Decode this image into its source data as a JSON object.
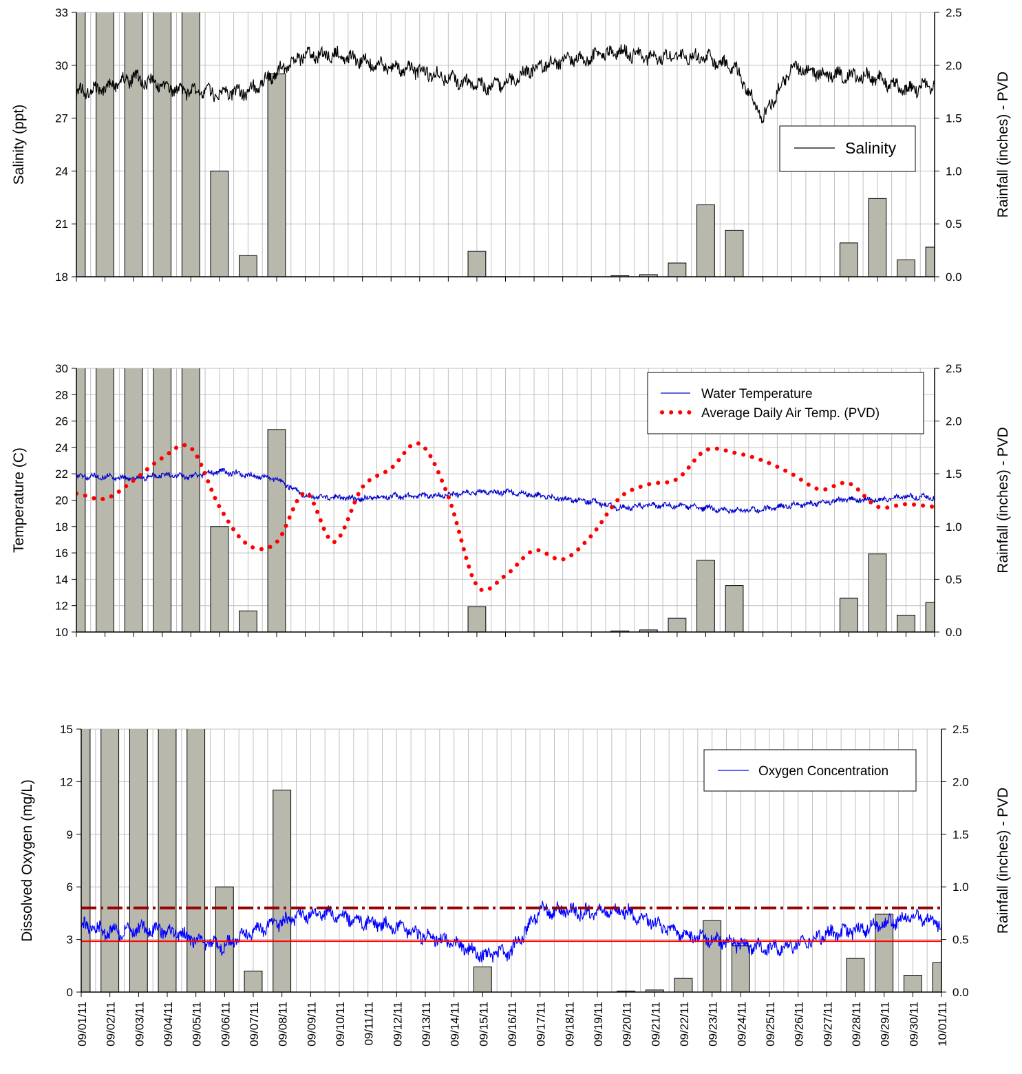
{
  "colors": {
    "bar_fill": "#b9b8ac",
    "grid": "#c0c0c0",
    "salinity": "#000000",
    "water_temp": "#0000cc",
    "air_temp": "#ff0000",
    "oxygen": "#0000ff",
    "threshold_upper": "#990000",
    "threshold_lower": "#ff0000"
  },
  "x_dates": [
    "09/01/11",
    "09/02/11",
    "09/03/11",
    "09/04/11",
    "09/05/11",
    "09/06/11",
    "09/07/11",
    "09/08/11",
    "09/09/11",
    "09/10/11",
    "09/11/11",
    "09/12/11",
    "09/13/11",
    "09/14/11",
    "09/15/11",
    "09/16/11",
    "09/17/11",
    "09/18/11",
    "09/19/11",
    "09/20/11",
    "09/21/11",
    "09/22/11",
    "09/23/11",
    "09/24/11",
    "09/25/11",
    "09/26/11",
    "09/27/11",
    "09/28/11",
    "09/29/11",
    "09/30/11",
    "10/01/11"
  ],
  "chart_data": [
    {
      "type": "line",
      "ylabel": "Salinity (ppt)",
      "y2label": "Rainfall (inches) - PVD",
      "ylim": [
        18,
        33
      ],
      "yticks": [
        18,
        21,
        24,
        27,
        30,
        33
      ],
      "y2lim": [
        0,
        2.5
      ],
      "y2ticks": [
        "0.0",
        "0.5",
        "1.0",
        "1.5",
        "2.0",
        "2.5"
      ],
      "legend_position": "upper-right",
      "rainfall": {
        "name": "Rainfall",
        "dates": [
          "09/01/11",
          "09/02/11",
          "09/03/11",
          "09/04/11",
          "09/05/11",
          "09/06/11",
          "09/07/11",
          "09/08/11",
          "09/15/11",
          "09/20/11",
          "09/21/11",
          "09/22/11",
          "09/23/11",
          "09/24/11",
          "09/28/11",
          "09/29/11",
          "09/30/11",
          "10/01/11"
        ],
        "values": [
          3.0,
          3.0,
          3.0,
          3.0,
          3.0,
          1.0,
          0.2,
          1.92,
          0.24,
          0.01,
          0.02,
          0.13,
          0.68,
          0.44,
          0.32,
          0.74,
          0.16,
          0.28
        ]
      },
      "series": [
        {
          "name": "Salinity",
          "x": [
            "09/01/11",
            "09/02/11",
            "09/03/11",
            "09/04/11",
            "09/05/11",
            "09/06/11",
            "09/07/11",
            "09/08/11",
            "09/09/11",
            "09/10/11",
            "09/11/11",
            "09/12/11",
            "09/13/11",
            "09/14/11",
            "09/15/11",
            "09/16/11",
            "09/17/11",
            "09/18/11",
            "09/19/11",
            "09/20/11",
            "09/21/11",
            "09/22/11",
            "09/23/11",
            "09/24/11",
            "09/25/11",
            "09/26/11",
            "09/27/11",
            "09/28/11",
            "09/29/11",
            "09/30/11",
            "10/01/11"
          ],
          "values": [
            28.5,
            28.7,
            29.3,
            28.8,
            28.5,
            28.4,
            28.5,
            29.6,
            30.6,
            30.6,
            30.2,
            29.9,
            29.7,
            29.3,
            28.8,
            28.9,
            29.9,
            30.3,
            30.4,
            30.8,
            30.4,
            30.5,
            30.4,
            29.9,
            27.0,
            29.9,
            29.5,
            29.4,
            29.3,
            28.6,
            28.9
          ]
        }
      ]
    },
    {
      "type": "line",
      "ylabel": "Temperature (C)",
      "y2label": "Rainfall (inches) - PVD",
      "ylim": [
        10,
        30
      ],
      "yticks": [
        10,
        12,
        14,
        16,
        18,
        20,
        22,
        24,
        26,
        28,
        30
      ],
      "y2lim": [
        0,
        2.5
      ],
      "y2ticks": [
        "0.0",
        "0.5",
        "1.0",
        "1.5",
        "2.0",
        "2.5"
      ],
      "legend_position": "upper-right",
      "rainfall": {
        "name": "Rainfall",
        "dates": [
          "09/01/11",
          "09/02/11",
          "09/03/11",
          "09/04/11",
          "09/05/11",
          "09/06/11",
          "09/07/11",
          "09/08/11",
          "09/15/11",
          "09/20/11",
          "09/21/11",
          "09/22/11",
          "09/23/11",
          "09/24/11",
          "09/28/11",
          "09/29/11",
          "09/30/11",
          "10/01/11"
        ],
        "values": [
          3.0,
          3.0,
          3.0,
          3.0,
          3.0,
          1.0,
          0.2,
          1.92,
          0.24,
          0.01,
          0.02,
          0.13,
          0.68,
          0.44,
          0.32,
          0.74,
          0.16,
          0.28
        ]
      },
      "series": [
        {
          "name": "Water Temperature",
          "x": [
            "09/01/11",
            "09/02/11",
            "09/03/11",
            "09/04/11",
            "09/05/11",
            "09/06/11",
            "09/07/11",
            "09/08/11",
            "09/09/11",
            "09/10/11",
            "09/11/11",
            "09/12/11",
            "09/13/11",
            "09/14/11",
            "09/15/11",
            "09/16/11",
            "09/17/11",
            "09/18/11",
            "09/19/11",
            "09/20/11",
            "09/21/11",
            "09/22/11",
            "09/23/11",
            "09/24/11",
            "09/25/11",
            "09/26/11",
            "09/27/11",
            "09/28/11",
            "09/29/11",
            "09/30/11",
            "10/01/11"
          ],
          "values": [
            21.8,
            21.8,
            21.6,
            21.9,
            21.8,
            22.2,
            21.9,
            21.6,
            20.3,
            20.2,
            20.1,
            20.3,
            20.3,
            20.4,
            20.6,
            20.6,
            20.4,
            20.1,
            19.9,
            19.4,
            19.6,
            19.6,
            19.4,
            19.2,
            19.3,
            19.6,
            19.8,
            20.1,
            20.0,
            20.3,
            20.2
          ]
        },
        {
          "name": "Average Daily Air Temp. (PVD)",
          "x": [
            "09/01/11",
            "09/02/11",
            "09/03/11",
            "09/04/11",
            "09/05/11",
            "09/06/11",
            "09/07/11",
            "09/08/11",
            "09/09/11",
            "09/10/11",
            "09/11/11",
            "09/12/11",
            "09/13/11",
            "09/14/11",
            "09/15/11",
            "09/16/11",
            "09/17/11",
            "09/18/11",
            "09/19/11",
            "09/20/11",
            "09/21/11",
            "09/22/11",
            "09/23/11",
            "09/24/11",
            "09/25/11",
            "09/26/11",
            "09/27/11",
            "09/28/11",
            "09/29/11",
            "09/30/11",
            "10/01/11"
          ],
          "values": [
            20.5,
            20.1,
            21.5,
            23.2,
            24.0,
            19.5,
            16.6,
            16.8,
            20.6,
            16.8,
            21.0,
            22.4,
            24.3,
            20.3,
            13.5,
            14.3,
            16.2,
            15.5,
            17.3,
            20.2,
            21.2,
            21.6,
            23.8,
            23.6,
            23.0,
            22.0,
            20.8,
            21.3,
            19.5,
            19.7,
            19.5
          ]
        }
      ]
    },
    {
      "type": "line",
      "ylabel": "Dissolved Oxygen (mg/L)",
      "y2label": "Rainfall (inches) - PVD",
      "xlabels": [
        "09/01/11",
        "09/02/11",
        "09/03/11",
        "09/04/11",
        "09/05/11",
        "09/06/11",
        "09/07/11",
        "09/08/11",
        "09/09/11",
        "09/10/11",
        "09/11/11",
        "09/12/11",
        "09/13/11",
        "09/14/11",
        "09/15/11",
        "09/16/11",
        "09/17/11",
        "09/18/11",
        "09/19/11",
        "09/20/11",
        "09/21/11",
        "09/22/11",
        "09/23/11",
        "09/24/11",
        "09/25/11",
        "09/26/11",
        "09/27/11",
        "09/28/11",
        "09/29/11",
        "09/30/11",
        "10/01/11"
      ],
      "ylim": [
        0,
        15
      ],
      "yticks": [
        0,
        3,
        6,
        9,
        12,
        15
      ],
      "y2lim": [
        0,
        2.5
      ],
      "y2ticks": [
        "0.0",
        "0.5",
        "1.0",
        "1.5",
        "2.0",
        "2.5"
      ],
      "legend_position": "upper-right",
      "reference_lines": [
        4.8,
        2.9
      ],
      "rainfall": {
        "name": "Rainfall",
        "dates": [
          "09/01/11",
          "09/02/11",
          "09/03/11",
          "09/04/11",
          "09/05/11",
          "09/06/11",
          "09/07/11",
          "09/08/11",
          "09/15/11",
          "09/20/11",
          "09/21/11",
          "09/22/11",
          "09/23/11",
          "09/24/11",
          "09/28/11",
          "09/29/11",
          "09/30/11",
          "10/01/11"
        ],
        "values": [
          3.0,
          3.0,
          3.0,
          3.0,
          3.0,
          1.0,
          0.2,
          1.92,
          0.24,
          0.01,
          0.02,
          0.13,
          0.68,
          0.44,
          0.32,
          0.74,
          0.16,
          0.28
        ]
      },
      "series": [
        {
          "name": "Oxygen Concentration",
          "x": [
            "09/01/11",
            "09/02/11",
            "09/03/11",
            "09/04/11",
            "09/05/11",
            "09/06/11",
            "09/07/11",
            "09/08/11",
            "09/09/11",
            "09/10/11",
            "09/11/11",
            "09/12/11",
            "09/13/11",
            "09/14/11",
            "09/15/11",
            "09/16/11",
            "09/17/11",
            "09/18/11",
            "09/19/11",
            "09/20/11",
            "09/21/11",
            "09/22/11",
            "09/23/11",
            "09/24/11",
            "09/25/11",
            "09/26/11",
            "09/27/11",
            "09/28/11",
            "09/29/11",
            "09/30/11",
            "10/01/11"
          ],
          "values": [
            3.8,
            3.4,
            3.6,
            3.5,
            3.0,
            2.6,
            3.5,
            4.0,
            4.5,
            4.4,
            4.0,
            3.7,
            3.2,
            2.8,
            2.1,
            2.3,
            4.7,
            4.6,
            4.5,
            4.6,
            3.9,
            3.3,
            3.0,
            2.7,
            2.5,
            2.7,
            3.3,
            3.5,
            3.9,
            4.3,
            3.9
          ]
        }
      ]
    }
  ]
}
